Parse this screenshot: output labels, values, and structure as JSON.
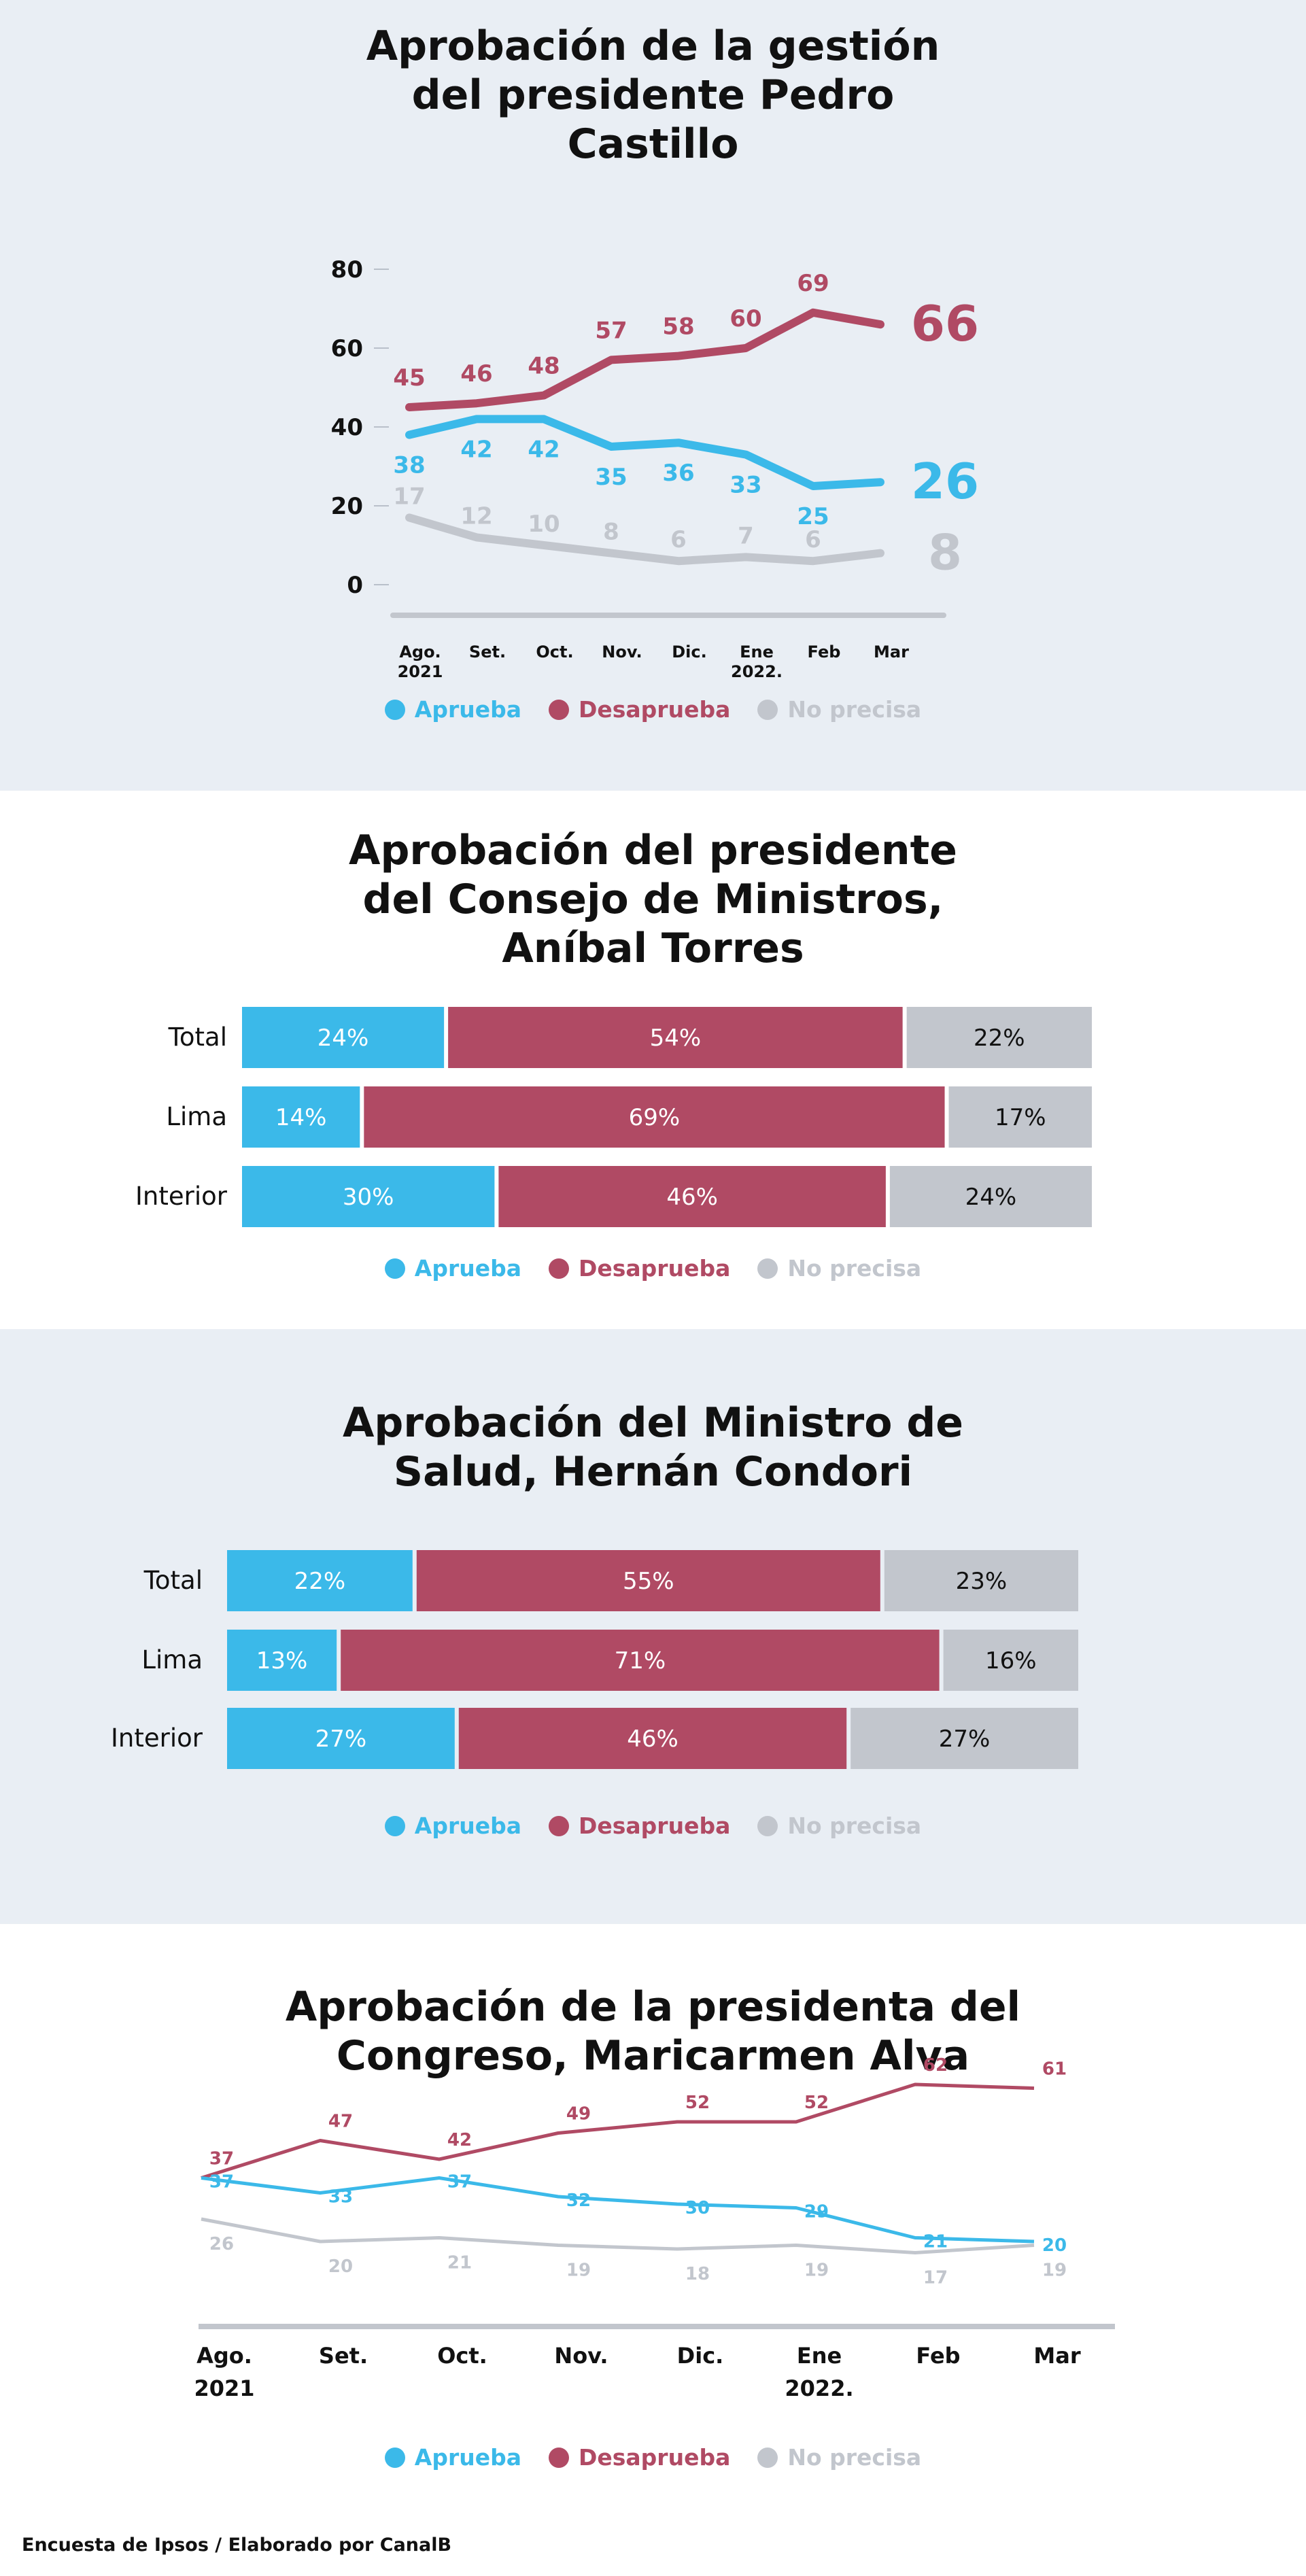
{
  "colors": {
    "aprueba": "#3bb9e9",
    "desaprueba": "#b04a64",
    "no_precisa": "#c2c6cd",
    "text": "#111111"
  },
  "legend": {
    "aprueba": "Aprueba",
    "desaprueba": "Desaprueba",
    "no_precisa": "No precisa"
  },
  "footer": "Encuesta de Ipsos / Elaborado por CanalB",
  "chart_data": [
    {
      "type": "line",
      "title": [
        "Aprobación de la gestión",
        "del presidente Pedro",
        "Castillo"
      ],
      "categories": [
        [
          "Ago.",
          "2021"
        ],
        [
          "Set."
        ],
        [
          "Oct."
        ],
        [
          "Nov."
        ],
        [
          "Dic."
        ],
        [
          "Ene",
          "2022."
        ],
        [
          "Feb"
        ],
        [
          "Mar"
        ]
      ],
      "ylim": [
        0,
        80
      ],
      "yticks": [
        0,
        20,
        40,
        60,
        80
      ],
      "series": [
        {
          "key": "desaprueba",
          "name": "Desaprueba",
          "values": [
            45,
            46,
            48,
            57,
            58,
            60,
            69,
            66
          ]
        },
        {
          "key": "aprueba",
          "name": "Aprueba",
          "values": [
            38,
            42,
            42,
            35,
            36,
            33,
            25,
            26
          ]
        },
        {
          "key": "no_precisa",
          "name": "No precisa",
          "values": [
            17,
            12,
            10,
            8,
            6,
            7,
            6,
            8
          ]
        }
      ],
      "last_value_emphasized": true
    },
    {
      "type": "bar",
      "stacked": true,
      "orientation": "horizontal",
      "title": [
        "Aprobación del presidente",
        "del Consejo de Ministros,",
        "Aníbal Torres"
      ],
      "categories": [
        "Total",
        "Lima",
        "Interior"
      ],
      "series": [
        {
          "key": "aprueba",
          "name": "Aprueba",
          "values": [
            24,
            14,
            30
          ]
        },
        {
          "key": "desaprueba",
          "name": "Desaprueba",
          "values": [
            54,
            69,
            46
          ]
        },
        {
          "key": "no_precisa",
          "name": "No precisa",
          "values": [
            22,
            17,
            24
          ]
        }
      ],
      "value_suffix": "%"
    },
    {
      "type": "bar",
      "stacked": true,
      "orientation": "horizontal",
      "title": [
        "Aprobación del Ministro de",
        "Salud, Hernán Condori"
      ],
      "categories": [
        "Total",
        "Lima",
        "Interior"
      ],
      "series": [
        {
          "key": "aprueba",
          "name": "Aprueba",
          "values": [
            22,
            13,
            27
          ]
        },
        {
          "key": "desaprueba",
          "name": "Desaprueba",
          "values": [
            55,
            71,
            46
          ]
        },
        {
          "key": "no_precisa",
          "name": "No precisa",
          "values": [
            23,
            16,
            27
          ]
        }
      ],
      "value_suffix": "%"
    },
    {
      "type": "line",
      "title": [
        "Aprobación de la presidenta del",
        "Congreso, Maricarmen Alva"
      ],
      "categories": [
        [
          "Ago.",
          "2021"
        ],
        [
          "Set."
        ],
        [
          "Oct."
        ],
        [
          "Nov."
        ],
        [
          "Dic."
        ],
        [
          "Ene",
          "2022."
        ],
        [
          "Feb"
        ],
        [
          "Mar"
        ]
      ],
      "series": [
        {
          "key": "desaprueba",
          "name": "Desaprueba",
          "values": [
            37,
            47,
            42,
            49,
            52,
            52,
            62,
            61
          ]
        },
        {
          "key": "aprueba",
          "name": "Aprueba",
          "values": [
            37,
            33,
            37,
            32,
            30,
            29,
            21,
            20
          ]
        },
        {
          "key": "no_precisa",
          "name": "No precisa",
          "values": [
            26,
            20,
            21,
            19,
            18,
            19,
            17,
            19
          ]
        }
      ]
    }
  ]
}
